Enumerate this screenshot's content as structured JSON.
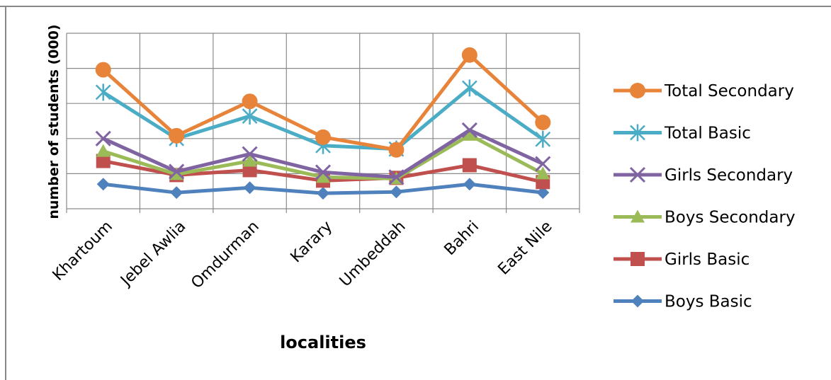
{
  "chart_data": {
    "type": "line",
    "title": "",
    "xlabel": "localities",
    "ylabel": "number of students (000)",
    "categories": [
      "Khartoum",
      "Jebel Awlia",
      "Omdurman",
      "Karary",
      "Umbeddah",
      "Bahri",
      "East Nile"
    ],
    "ylim": [
      0,
      250
    ],
    "ytick_labels_visible": false,
    "grid": true,
    "legend_position": "right",
    "series": [
      {
        "name": "Total Secondary",
        "color": "#E8833A",
        "marker": "circle",
        "values": [
          198,
          104,
          153,
          102,
          84,
          219,
          123
        ]
      },
      {
        "name": "Total Basic",
        "color": "#4BACC6",
        "marker": "asterisk",
        "values": [
          166,
          100,
          132,
          90,
          85,
          172,
          99
        ]
      },
      {
        "name": "Girls Secondary",
        "color": "#8064A2",
        "marker": "x",
        "values": [
          100,
          53,
          78,
          52,
          45,
          112,
          64
        ]
      },
      {
        "name": "Boys Secondary",
        "color": "#9BBB59",
        "marker": "triangle",
        "values": [
          82,
          49,
          68,
          45,
          43,
          105,
          50
        ]
      },
      {
        "name": "Girls Basic",
        "color": "#C0504D",
        "marker": "square",
        "values": [
          68,
          48,
          55,
          40,
          44,
          62,
          38
        ]
      },
      {
        "name": "Boys Basic",
        "color": "#4F81BD",
        "marker": "diamond",
        "values": [
          35,
          23,
          30,
          22,
          24,
          35,
          23
        ]
      }
    ]
  }
}
